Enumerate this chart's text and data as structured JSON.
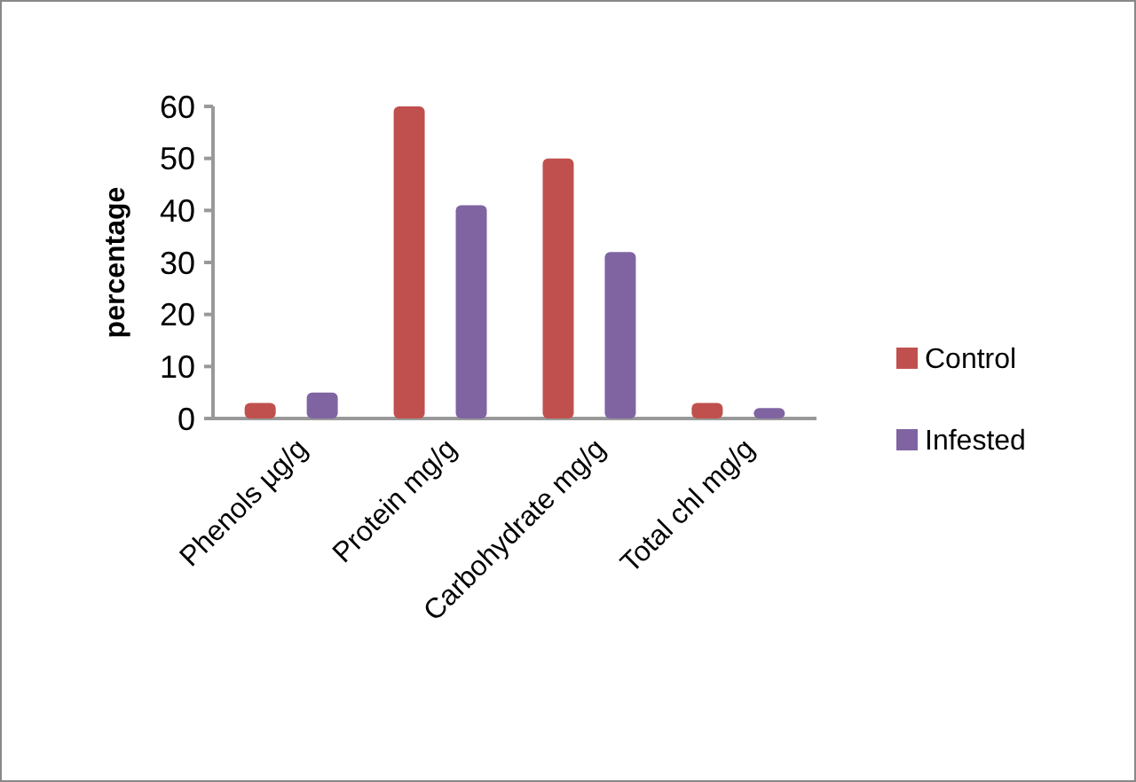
{
  "chart_data": {
    "type": "bar",
    "ylabel": "percentage",
    "categories": [
      "Phenols µg/g",
      "Protein mg/g",
      "Carbohydrate mg/g",
      "Total chl mg/g"
    ],
    "series": [
      {
        "name": "Control",
        "color": "#c0504d",
        "values": [
          3,
          60,
          50,
          3
        ]
      },
      {
        "name": "Infested",
        "color": "#8064a2",
        "values": [
          5,
          41,
          32,
          2
        ]
      }
    ],
    "ylim": [
      0,
      60
    ],
    "yticks": [
      0,
      10,
      20,
      30,
      40,
      50,
      60
    ],
    "grid": false,
    "legend": "right"
  }
}
